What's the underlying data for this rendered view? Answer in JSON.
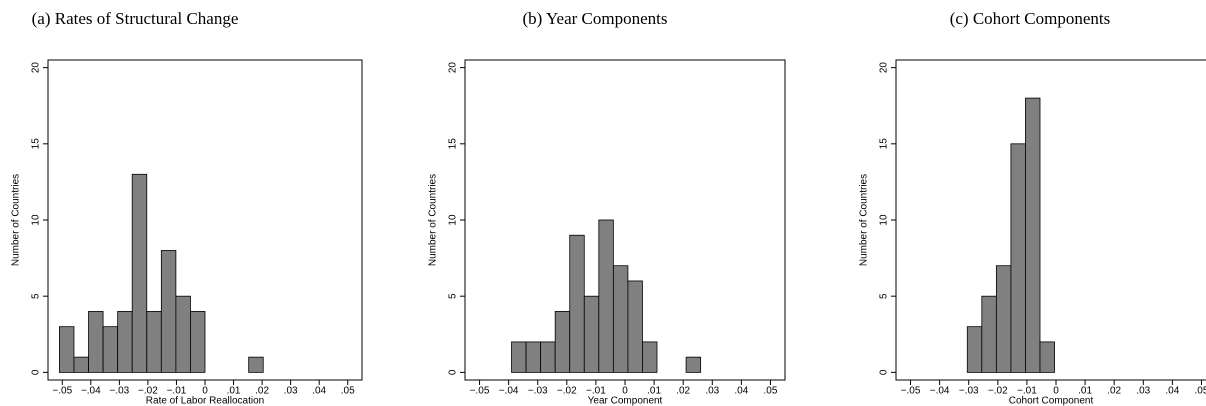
{
  "chart_data": [
    {
      "type": "histogram",
      "title": "(a) Rates of Structural Change",
      "xlabel": "Rate of Labor Reallocation",
      "ylabel": "Number of Countries",
      "bins": [
        -0.051,
        -0.0459,
        -0.0408,
        -0.0357,
        -0.0306,
        -0.0255,
        -0.0204,
        -0.0153,
        -0.0102,
        -0.0051,
        0.0,
        0.0051,
        0.0102,
        0.0153,
        0.0204
      ],
      "values": [
        3,
        1,
        4,
        3,
        4,
        13,
        4,
        8,
        5,
        4,
        0,
        0,
        0,
        1
      ],
      "color": "#808080",
      "xlim": [
        -0.055,
        0.055
      ],
      "ylim": [
        -0.5,
        20.5
      ],
      "xticks": [
        {
          "value": -0.05,
          "label": "−.05"
        },
        {
          "value": -0.04,
          "label": "−.04"
        },
        {
          "value": -0.03,
          "label": "−.03"
        },
        {
          "value": -0.02,
          "label": "−.02"
        },
        {
          "value": -0.01,
          "label": "−.01"
        },
        0,
        {
          "value": 0.01,
          "label": ".01"
        },
        {
          "value": 0.02,
          "label": ".02"
        },
        {
          "value": 0.03,
          "label": ".03"
        },
        {
          "value": 0.04,
          "label": ".04"
        },
        {
          "value": 0.05,
          "label": ".05"
        }
      ],
      "yticks": [
        0,
        5,
        10,
        15,
        20
      ]
    },
    {
      "type": "histogram",
      "title": "(b) Year Components",
      "xlabel": "Year Component",
      "ylabel": "Number of Countries",
      "bins": [
        -0.039,
        -0.034,
        -0.029,
        -0.024,
        -0.019,
        -0.014,
        -0.009,
        -0.004,
        0.001,
        0.006,
        0.011,
        0.016,
        0.021,
        0.026
      ],
      "values": [
        2,
        2,
        2,
        4,
        9,
        5,
        10,
        7,
        6,
        2,
        0,
        0,
        1
      ],
      "color": "#808080",
      "xlim": [
        -0.055,
        0.055
      ],
      "ylim": [
        -0.5,
        20.5
      ],
      "xticks": [
        {
          "value": -0.05,
          "label": "−.05"
        },
        {
          "value": -0.04,
          "label": "−.04"
        },
        {
          "value": -0.03,
          "label": "−.03"
        },
        {
          "value": -0.02,
          "label": "−.02"
        },
        {
          "value": -0.01,
          "label": "−.01"
        },
        0,
        {
          "value": 0.01,
          "label": ".01"
        },
        {
          "value": 0.02,
          "label": ".02"
        },
        {
          "value": 0.03,
          "label": ".03"
        },
        {
          "value": 0.04,
          "label": ".04"
        },
        {
          "value": 0.05,
          "label": ".05"
        }
      ],
      "yticks": [
        0,
        5,
        10,
        15,
        20
      ]
    },
    {
      "type": "histogram",
      "title": "(c) Cohort Components",
      "xlabel": "Cohort Component",
      "ylabel": "Number of Countries",
      "bins": [
        -0.0305,
        -0.0255,
        -0.0205,
        -0.0155,
        -0.0105,
        -0.0055,
        -0.0005
      ],
      "values": [
        3,
        5,
        7,
        15,
        18,
        2
      ],
      "color": "#808080",
      "xlim": [
        -0.055,
        0.055
      ],
      "ylim": [
        -0.5,
        20.5
      ],
      "xticks": [
        {
          "value": -0.05,
          "label": "−.05"
        },
        {
          "value": -0.04,
          "label": "−.04"
        },
        {
          "value": -0.03,
          "label": "−.03"
        },
        {
          "value": -0.02,
          "label": "−.02"
        },
        {
          "value": -0.01,
          "label": "−.01"
        },
        0,
        {
          "value": 0.01,
          "label": ".01"
        },
        {
          "value": 0.02,
          "label": ".02"
        },
        {
          "value": 0.03,
          "label": ".03"
        },
        {
          "value": 0.04,
          "label": ".04"
        },
        {
          "value": 0.05,
          "label": ".05"
        }
      ],
      "yticks": [
        0,
        5,
        10,
        15,
        20
      ]
    }
  ]
}
